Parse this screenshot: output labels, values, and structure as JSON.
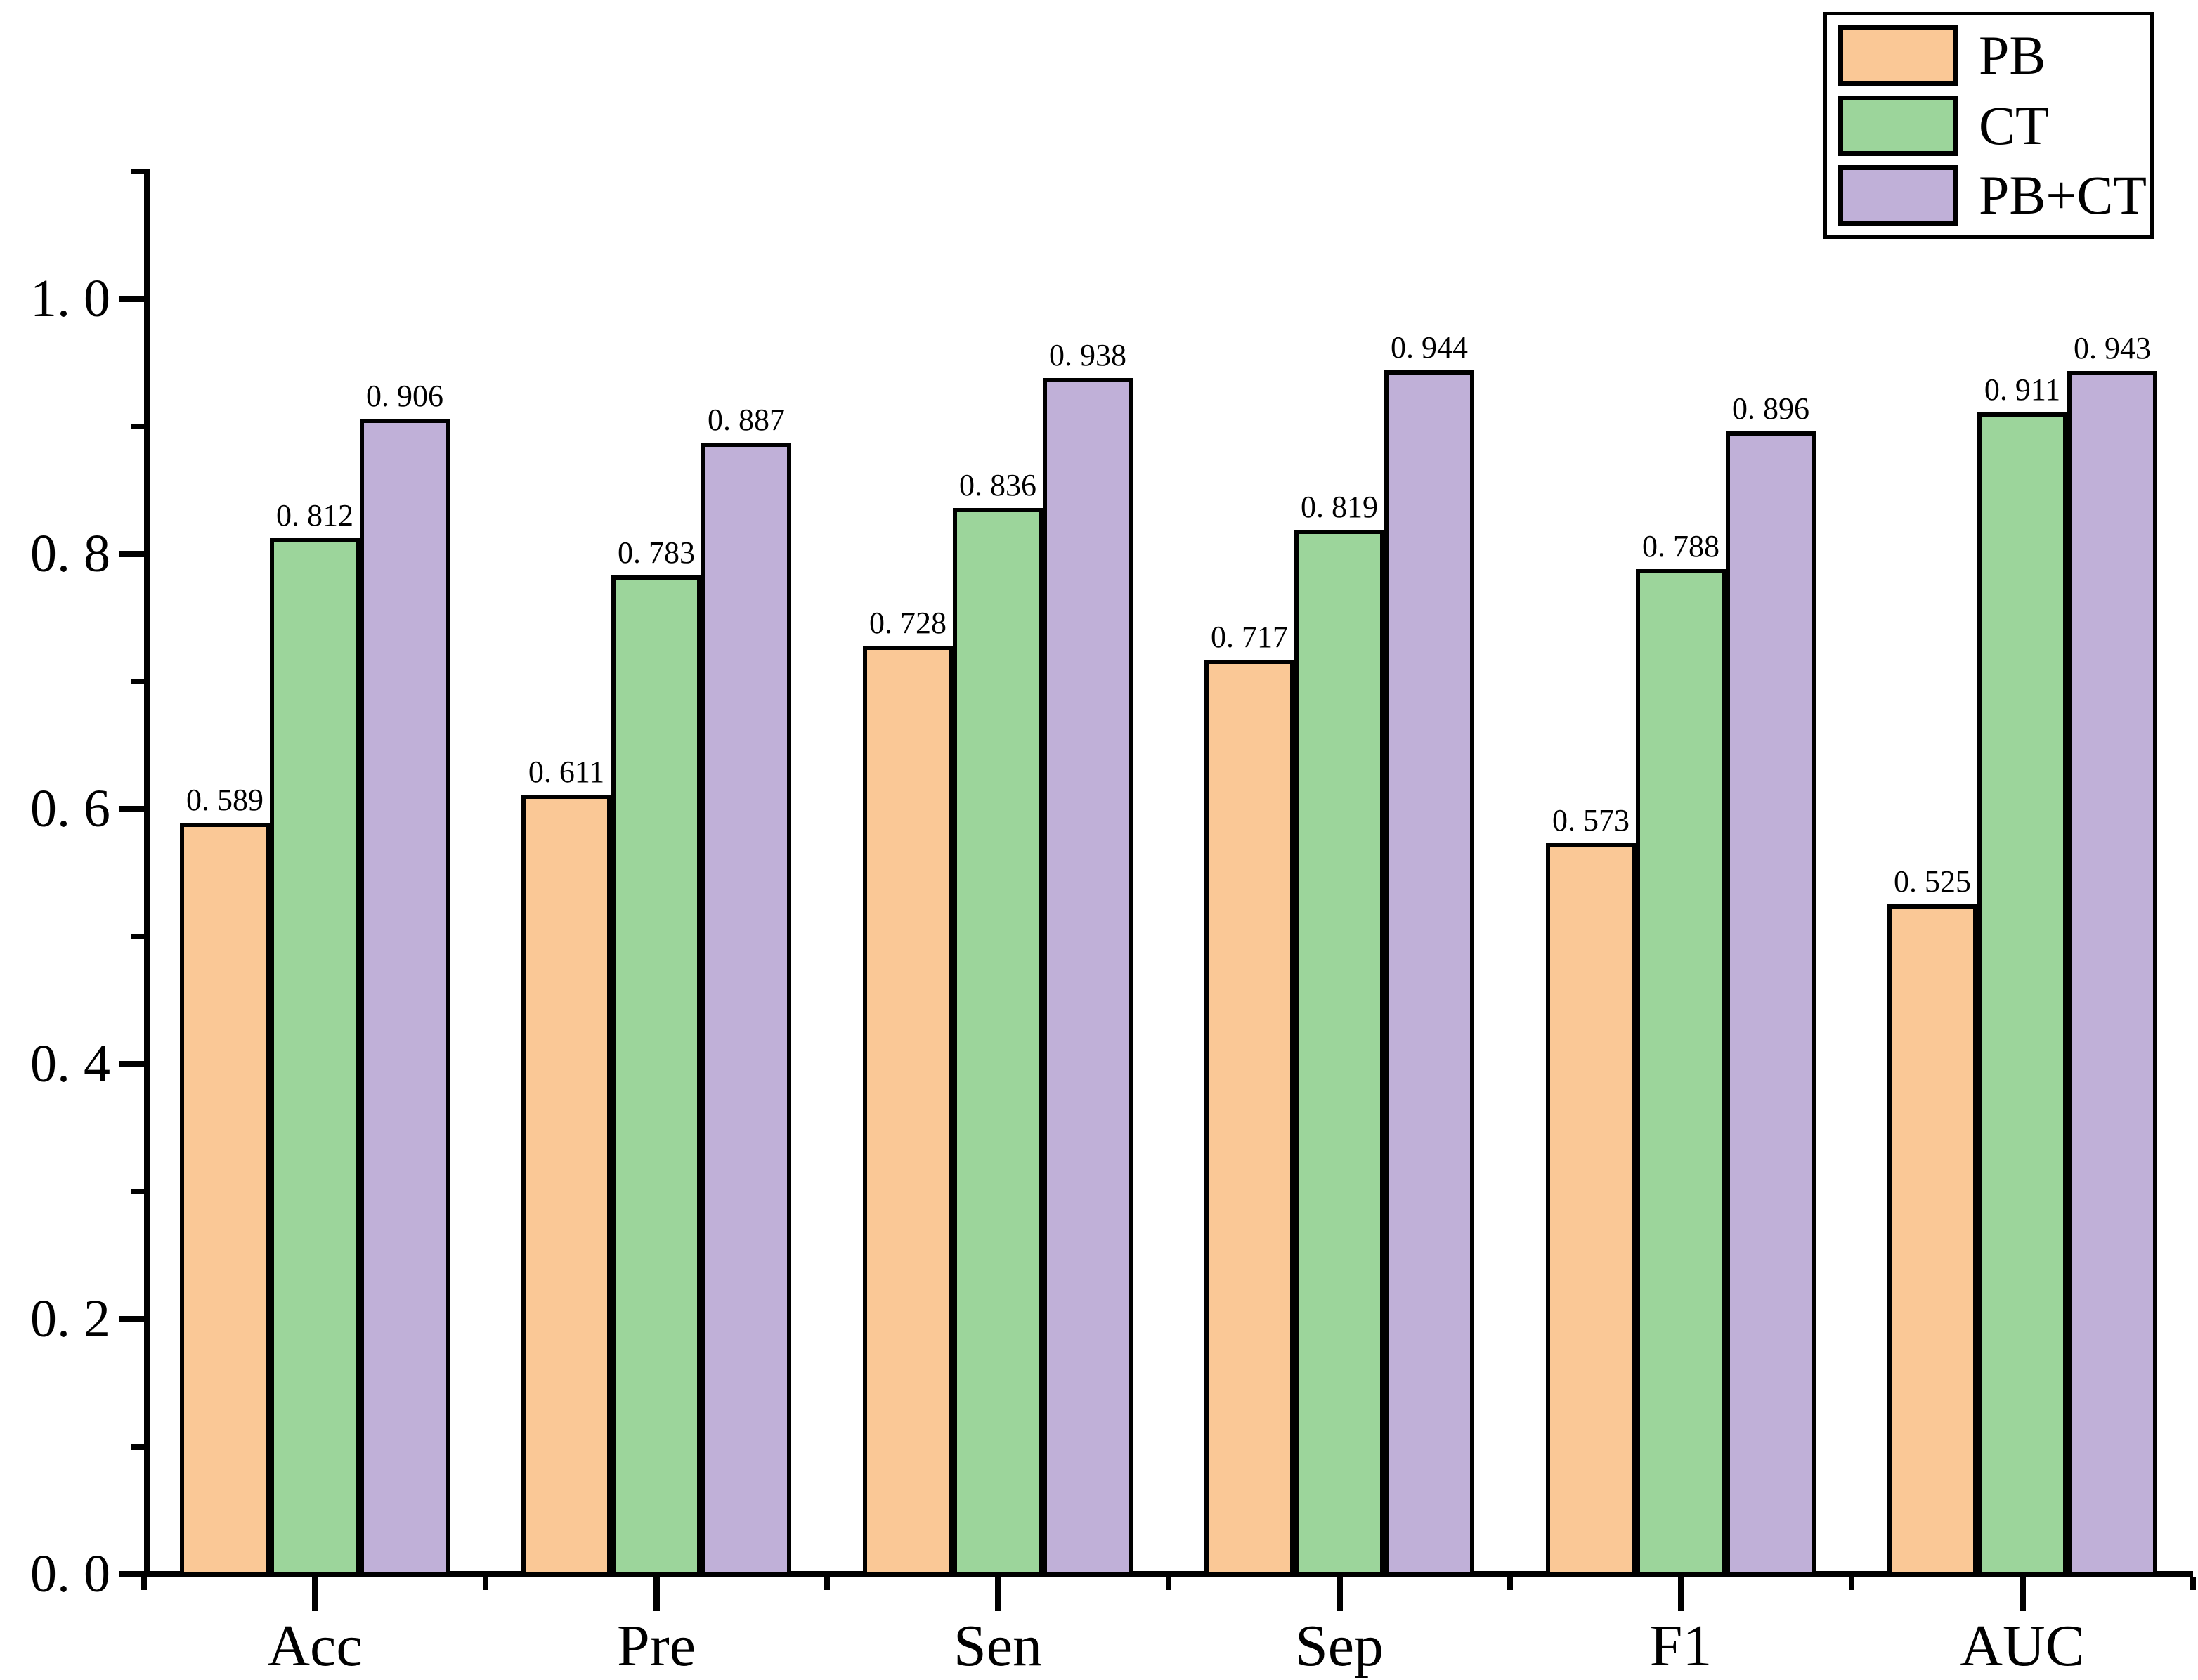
{
  "chart_data": {
    "type": "bar",
    "title": "",
    "xlabel": "",
    "ylabel": "",
    "categories": [
      "Acc",
      "Pre",
      "Sen",
      "Sep",
      "F1",
      "AUC"
    ],
    "series": [
      {
        "name": "PB",
        "color": "#FAC896",
        "values": [
          0.589,
          0.611,
          0.728,
          0.717,
          0.573,
          0.525
        ]
      },
      {
        "name": "CT",
        "color": "#9CD59B",
        "values": [
          0.812,
          0.783,
          0.836,
          0.819,
          0.788,
          0.911
        ]
      },
      {
        "name": "PB+CT",
        "color": "#C0B0D8",
        "values": [
          0.906,
          0.887,
          0.938,
          0.944,
          0.896,
          0.943
        ]
      }
    ],
    "bar_value_labels": true,
    "ylim": [
      0,
      1.1
    ],
    "yticks_major": [
      0.0,
      0.2,
      0.4,
      0.6,
      0.8,
      1.0
    ],
    "ytick_labels": [
      "0. 0",
      "0. 2",
      "0. 4",
      "0. 6",
      "0. 8",
      "1. 0"
    ],
    "yticks_minor": [
      0.1,
      0.3,
      0.5,
      0.7,
      0.9,
      1.1
    ],
    "grid": false,
    "legend": {
      "position": "top-right",
      "entries": [
        "PB",
        "CT",
        "PB+CT"
      ]
    },
    "colors": {
      "axis": "#000000",
      "text": "#000000",
      "background": "#FFFFFF"
    }
  }
}
